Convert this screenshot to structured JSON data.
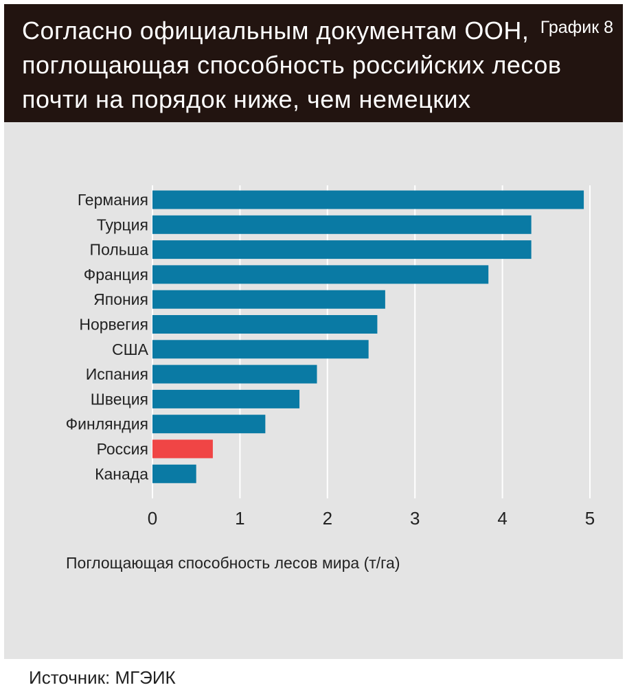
{
  "header": {
    "title": "Согласно официальным документам ООН, поглощающая способность российских лесов почти на порядок ниже, чем немецких",
    "chart_number": "График 8"
  },
  "chart_data": {
    "type": "bar",
    "orientation": "horizontal",
    "title": "Согласно официальным документам ООН, поглощающая способность российских лесов почти на порядок ниже, чем немецких",
    "xlabel": "Поглощающая способность лесов мира (т/га)",
    "ylabel": "",
    "xlim": [
      0,
      5
    ],
    "x_ticks": [
      "0",
      "1",
      "2",
      "3",
      "4",
      "5"
    ],
    "grid": "vertical",
    "categories": [
      "Германия",
      "Турция",
      "Польша",
      "Франция",
      "Япония",
      "Норвегия",
      "США",
      "Испания",
      "Швеция",
      "Финляндия",
      "Россия",
      "Канада"
    ],
    "values": [
      4.93,
      4.33,
      4.33,
      3.84,
      2.66,
      2.57,
      2.47,
      1.88,
      1.68,
      1.29,
      0.69,
      0.5
    ],
    "colors": {
      "default": "#0a7aa4",
      "highlight": "#f04545",
      "highlight_category": "Россия",
      "grid": "#ffffff",
      "background": "#e4e4e4"
    }
  },
  "footer": {
    "source": "Источник: МГЭИК"
  }
}
